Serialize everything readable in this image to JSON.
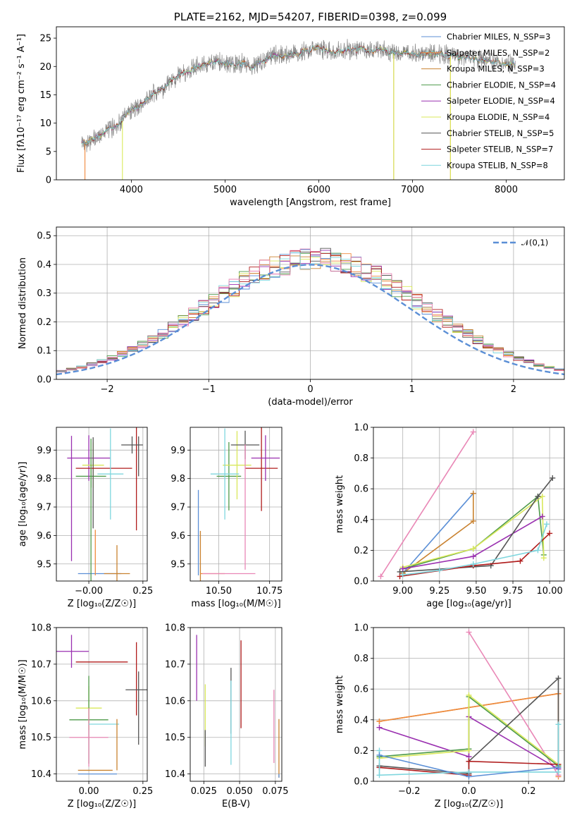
{
  "chart_data": [
    {
      "id": "spectrum",
      "type": "line",
      "title": "PLATE=2162, MJD=54207, FIBERID=0398, z=0.099",
      "xlabel": "wavelength [Angstrom, rest frame]",
      "ylabel": "Flux [fλ10⁻¹⁷ erg cm⁻² s⁻¹ A⁻¹]",
      "xlim": [
        3200,
        8620
      ],
      "ylim": [
        0,
        27
      ],
      "xticks": [
        "4000",
        "5000",
        "6000",
        "7000",
        "8000"
      ],
      "yticks": [
        "0",
        "5",
        "10",
        "15",
        "20",
        "25"
      ],
      "grid": false,
      "legend_position": "right",
      "series": [
        {
          "name": "Chabrier MILES, N_SSP=3",
          "color": "#5b8fd6"
        },
        {
          "name": "Salpeter MILES, N_SSP=2",
          "color": "#f08a3c"
        },
        {
          "name": "Kroupa MILES, N_SSP=3",
          "color": "#c98230"
        },
        {
          "name": "Chabrier ELODIE, N_SSP=4",
          "color": "#4e9a4a"
        },
        {
          "name": "Salpeter ELODIE, N_SSP=4",
          "color": "#9a30b0"
        },
        {
          "name": "Kroupa ELODIE, N_SSP=4",
          "color": "#d9e85a"
        },
        {
          "name": "Chabrier STELIB, N_SSP=5",
          "color": "#555555"
        },
        {
          "name": "Salpeter STELIB, N_SSP=7",
          "color": "#b01c1c"
        },
        {
          "name": "Kroupa STELIB, N_SSP=8",
          "color": "#7fd6de"
        }
      ],
      "data_points": [
        [
          3470,
          6.5
        ],
        [
          3600,
          7.0
        ],
        [
          3700,
          8.5
        ],
        [
          3800,
          9.2
        ],
        [
          3900,
          10.5
        ],
        [
          4000,
          12.5
        ],
        [
          4100,
          13.0
        ],
        [
          4200,
          14.8
        ],
        [
          4300,
          15.5
        ],
        [
          4400,
          16.8
        ],
        [
          4500,
          18.5
        ],
        [
          4600,
          19.2
        ],
        [
          4700,
          20.0
        ],
        [
          4800,
          20.3
        ],
        [
          4900,
          20.8
        ],
        [
          5000,
          20.5
        ],
        [
          5100,
          20.2
        ],
        [
          5200,
          20.8
        ],
        [
          5300,
          19.8
        ],
        [
          5400,
          21.2
        ],
        [
          5500,
          21.8
        ],
        [
          5600,
          22.0
        ],
        [
          5700,
          22.2
        ],
        [
          5800,
          22.3
        ],
        [
          5900,
          23.0
        ],
        [
          6000,
          23.2
        ],
        [
          6100,
          22.8
        ],
        [
          6200,
          22.6
        ],
        [
          6300,
          23.0
        ],
        [
          6400,
          22.9
        ],
        [
          6500,
          23.2
        ],
        [
          6600,
          22.7
        ],
        [
          6700,
          22.8
        ],
        [
          6800,
          22.4
        ],
        [
          6900,
          22.6
        ],
        [
          7000,
          22.3
        ],
        [
          7100,
          22.0
        ],
        [
          7200,
          22.5
        ],
        [
          7300,
          22.2
        ],
        [
          7400,
          22.0
        ],
        [
          7500,
          21.8
        ],
        [
          7600,
          21.5
        ],
        [
          7700,
          21.3
        ],
        [
          7800,
          21.0
        ],
        [
          7900,
          20.8
        ],
        [
          8000,
          20.5
        ]
      ]
    },
    {
      "id": "residuals",
      "type": "histogram",
      "xlabel": "(data-model)/error",
      "ylabel": "Normed distribution",
      "xlim": [
        -2.5,
        2.5
      ],
      "ylim": [
        0,
        0.53
      ],
      "xticks": [
        "−2",
        "−1",
        "0",
        "1",
        "2"
      ],
      "yticks": [
        "0.0",
        "0.1",
        "0.2",
        "0.3",
        "0.4",
        "0.5"
      ],
      "grid": true,
      "legend_position": "top-right",
      "legend_label": "𝒩(0,1)",
      "curve_color": "#5b8fd6",
      "bin_width": 0.1
    },
    {
      "id": "age-vs-z",
      "type": "scatter",
      "xlabel": "Z [log₁₀(Z/Z☉)]",
      "ylabel": "age  [log₁₀(age/yr)]",
      "xlim": [
        -0.15,
        0.27
      ],
      "ylim": [
        9.44,
        9.98
      ],
      "xticks": [
        "−0.00",
        "0.25"
      ],
      "yticks": [
        "9.5",
        "9.6",
        "9.7",
        "9.8",
        "9.9"
      ],
      "grid": true,
      "points": [
        {
          "x": 0.05,
          "y": 9.466,
          "xerr": 0.1,
          "yerr": 0.0,
          "color": "#5b8fd6"
        },
        {
          "x": 0.13,
          "y": 9.466,
          "xerr": 0.06,
          "yerr": 0.1,
          "color": "#c98230"
        },
        {
          "x": 0.01,
          "y": 9.808,
          "xerr": 0.07,
          "yerr": 0.04,
          "color": "#4e9a4a"
        },
        {
          "x": 0.0,
          "y": 9.872,
          "xerr": 0.1,
          "yerr": 0.08,
          "color": "#9a30b0"
        },
        {
          "x": 0.02,
          "y": 9.847,
          "xerr": 0.05,
          "yerr": 0.08,
          "color": "#d9e85a"
        },
        {
          "x": 0.02,
          "y": 9.785,
          "xerr": 0.0,
          "yerr": 0.16,
          "color": "#555555"
        },
        {
          "x": 0.07,
          "y": 9.836,
          "xerr": 0.13,
          "yerr": 0.0,
          "color": "#b01c1c"
        },
        {
          "x": 0.22,
          "y": 9.838,
          "xerr": 0.0,
          "yerr": 0.22,
          "color": "#b01c1c"
        },
        {
          "x": 0.2,
          "y": 9.918,
          "xerr": 0.05,
          "yerr": 0.03,
          "color": "#555555"
        },
        {
          "x": 0.23,
          "y": 9.878,
          "xerr": 0.0,
          "yerr": 0.07,
          "color": "#555555"
        },
        {
          "x": 0.1,
          "y": 9.816,
          "xerr": 0.06,
          "yerr": 0.16,
          "color": "#7fd6de"
        },
        {
          "x": 0.01,
          "y": 9.68,
          "xerr": 0.0,
          "yerr": 0.26,
          "color": "#4e9a4a"
        },
        {
          "x": 0.03,
          "y": 9.54,
          "xerr": 0.0,
          "yerr": 0.08,
          "color": "#f08a3c"
        },
        {
          "x": -0.08,
          "y": 9.73,
          "xerr": 0.0,
          "yerr": 0.22,
          "color": "#9a30b0"
        }
      ]
    },
    {
      "id": "age-vs-mass",
      "type": "scatter",
      "xlabel": "mass [log₁₀(M/M☉)]",
      "ylabel": "",
      "xlim": [
        10.36,
        10.81
      ],
      "ylim": [
        9.44,
        9.98
      ],
      "xticks": [
        "10.50",
        "10.75"
      ],
      "yticks": [
        "9.5",
        "9.6",
        "9.7",
        "9.8",
        "9.9"
      ],
      "grid": true,
      "points": [
        {
          "x": 10.4,
          "y": 9.61,
          "xerr": 0.0,
          "yerr": 0.15,
          "color": "#5b8fd6"
        },
        {
          "x": 10.41,
          "y": 9.466,
          "xerr": 0.0,
          "yerr": 0.15,
          "color": "#c98230"
        },
        {
          "x": 10.47,
          "y": 9.466,
          "xerr": 0.06,
          "yerr": 0.0,
          "color": "#f08a3c"
        },
        {
          "x": 10.55,
          "y": 9.808,
          "xerr": 0.06,
          "yerr": 0.12,
          "color": "#4e9a4a"
        },
        {
          "x": 10.59,
          "y": 9.847,
          "xerr": 0.07,
          "yerr": 0.12,
          "color": "#d9e85a"
        },
        {
          "x": 10.63,
          "y": 9.918,
          "xerr": 0.07,
          "yerr": 0.05,
          "color": "#555555"
        },
        {
          "x": 10.71,
          "y": 9.836,
          "xerr": 0.08,
          "yerr": 0.15,
          "color": "#b01c1c"
        },
        {
          "x": 10.73,
          "y": 9.872,
          "xerr": 0.07,
          "yerr": 0.08,
          "color": "#9a30b0"
        },
        {
          "x": 10.53,
          "y": 9.816,
          "xerr": 0.07,
          "yerr": 0.16,
          "color": "#7fd6de"
        },
        {
          "x": 10.63,
          "y": 9.7,
          "xerr": 0.0,
          "yerr": 0.22,
          "color": "#e987b6"
        },
        {
          "x": 10.55,
          "y": 9.466,
          "xerr": 0.13,
          "yerr": 0.0,
          "color": "#e987b6"
        }
      ]
    },
    {
      "id": "mass-weight-vs-age",
      "type": "line",
      "xlabel": "age  [log₁₀(age/yr)]",
      "ylabel": "mass weight",
      "xlim": [
        8.8,
        10.1
      ],
      "ylim": [
        0,
        1
      ],
      "xticks": [
        "9.00",
        "9.25",
        "9.50",
        "9.75",
        "10.00"
      ],
      "yticks": [
        "0.0",
        "0.2",
        "0.4",
        "0.6",
        "0.8",
        "1.0"
      ],
      "grid": true,
      "series": [
        {
          "color": "#e987b6",
          "points": [
            [
              8.85,
              0.03
            ],
            [
              9.48,
              0.97
            ]
          ]
        },
        {
          "color": "#5b8fd6",
          "points": [
            [
              9.0,
              0.05
            ],
            [
              9.48,
              0.57
            ]
          ]
        },
        {
          "color": "#c98230",
          "points": [
            [
              9.0,
              0.05
            ],
            [
              9.48,
              0.39
            ],
            [
              9.48,
              0.57
            ]
          ]
        },
        {
          "color": "#4e9a4a",
          "points": [
            [
              9.0,
              0.08
            ],
            [
              9.48,
              0.21
            ],
            [
              9.92,
              0.55
            ],
            [
              9.96,
              0.17
            ]
          ]
        },
        {
          "color": "#d9e85a",
          "points": [
            [
              9.0,
              0.09
            ],
            [
              9.48,
              0.21
            ],
            [
              9.95,
              0.55
            ],
            [
              9.96,
              0.15
            ]
          ]
        },
        {
          "color": "#9a30b0",
          "points": [
            [
              9.0,
              0.08
            ],
            [
              9.48,
              0.16
            ],
            [
              9.95,
              0.42
            ]
          ]
        },
        {
          "color": "#555555",
          "points": [
            [
              8.98,
              0.06
            ],
            [
              9.6,
              0.1
            ],
            [
              9.92,
              0.55
            ],
            [
              10.02,
              0.67
            ]
          ]
        },
        {
          "color": "#b01c1c",
          "points": [
            [
              8.98,
              0.03
            ],
            [
              9.48,
              0.1
            ],
            [
              9.8,
              0.13
            ],
            [
              10.0,
              0.31
            ]
          ]
        },
        {
          "color": "#7fd6de",
          "points": [
            [
              9.0,
              0.04
            ],
            [
              9.25,
              0.07
            ],
            [
              9.48,
              0.11
            ],
            [
              9.92,
              0.2
            ],
            [
              9.98,
              0.37
            ]
          ]
        }
      ]
    },
    {
      "id": "mass-vs-z",
      "type": "scatter",
      "xlabel": "Z [log₁₀(Z/Z☉)]",
      "ylabel": "mass [log₁₀(M/M☉)]",
      "xlim": [
        -0.15,
        0.27
      ],
      "ylim": [
        10.38,
        10.8
      ],
      "xticks": [
        "0.00",
        "0.25"
      ],
      "yticks": [
        "10.4",
        "10.5",
        "10.6",
        "10.7",
        "10.8"
      ],
      "grid": true,
      "points": [
        {
          "x": -0.08,
          "y": 10.735,
          "xerr": 0.08,
          "yerr": 0.045,
          "color": "#9a30b0"
        },
        {
          "x": 0.0,
          "y": 10.58,
          "xerr": 0.06,
          "yerr": 0.06,
          "color": "#d9e85a"
        },
        {
          "x": 0.0,
          "y": 10.548,
          "xerr": 0.09,
          "yerr": 0.12,
          "color": "#4e9a4a"
        },
        {
          "x": 0.0,
          "y": 10.5,
          "xerr": 0.09,
          "yerr": 0.08,
          "color": "#e987b6"
        },
        {
          "x": 0.06,
          "y": 10.706,
          "xerr": 0.12,
          "yerr": 0.0,
          "color": "#b01c1c"
        },
        {
          "x": 0.22,
          "y": 10.66,
          "xerr": 0.0,
          "yerr": 0.1,
          "color": "#b01c1c"
        },
        {
          "x": 0.22,
          "y": 10.63,
          "xerr": 0.05,
          "yerr": 0.0,
          "color": "#555555"
        },
        {
          "x": 0.23,
          "y": 10.58,
          "xerr": 0.0,
          "yerr": 0.1,
          "color": "#555555"
        },
        {
          "x": 0.07,
          "y": 10.536,
          "xerr": 0.07,
          "yerr": 0.0,
          "color": "#7fd6de"
        },
        {
          "x": 0.03,
          "y": 10.41,
          "xerr": 0.08,
          "yerr": 0.0,
          "color": "#c98230"
        },
        {
          "x": 0.04,
          "y": 10.4,
          "xerr": 0.09,
          "yerr": 0.0,
          "color": "#5b8fd6"
        },
        {
          "x": 0.13,
          "y": 10.48,
          "xerr": 0.0,
          "yerr": 0.07,
          "color": "#c98230"
        }
      ]
    },
    {
      "id": "mass-vs-ebv",
      "type": "scatter",
      "xlabel": "E(B-V)",
      "ylabel": "",
      "xlim": [
        0.0155,
        0.0795
      ],
      "ylim": [
        10.38,
        10.8
      ],
      "xticks": [
        "0.025",
        "0.050",
        "0.075"
      ],
      "yticks": [
        "10.4",
        "10.5",
        "10.6",
        "10.7",
        "10.8"
      ],
      "grid": true,
      "points": [
        {
          "x": 0.02,
          "y": 10.69,
          "xerr": 0.0,
          "yerr": 0.09,
          "color": "#9a30b0"
        },
        {
          "x": 0.026,
          "y": 10.56,
          "xerr": 0.0,
          "yerr": 0.085,
          "color": "#d9e85a"
        },
        {
          "x": 0.026,
          "y": 10.47,
          "xerr": 0.0,
          "yerr": 0.05,
          "color": "#555555"
        },
        {
          "x": 0.044,
          "y": 10.6,
          "xerr": 0.0,
          "yerr": 0.09,
          "color": "#555555"
        },
        {
          "x": 0.044,
          "y": 10.54,
          "xerr": 0.0,
          "yerr": 0.115,
          "color": "#7fd6de"
        },
        {
          "x": 0.051,
          "y": 10.645,
          "xerr": 0.0,
          "yerr": 0.12,
          "color": "#b01c1c"
        },
        {
          "x": 0.074,
          "y": 10.53,
          "xerr": 0.0,
          "yerr": 0.1,
          "color": "#e987b6"
        },
        {
          "x": 0.0775,
          "y": 10.47,
          "xerr": 0.0,
          "yerr": 0.08,
          "color": "#c98230"
        },
        {
          "x": 0.0775,
          "y": 10.395,
          "xerr": 0.0,
          "yerr": 0.005,
          "color": "#5b8fd6"
        }
      ]
    },
    {
      "id": "mass-weight-vs-z",
      "type": "line",
      "xlabel": "Z [log₁₀(Z/Z☉)]",
      "ylabel": "mass weight",
      "xlim": [
        -0.32,
        0.32
      ],
      "ylim": [
        0,
        1
      ],
      "xticks": [
        "−0.2",
        "0.0",
        "0.2"
      ],
      "yticks": [
        "0.0",
        "0.2",
        "0.4",
        "0.6",
        "0.8",
        "1.0"
      ],
      "grid": true,
      "series": [
        {
          "color": "#c98230",
          "points": [
            [
              -0.3,
              0.39
            ],
            [
              0.3,
              0.57
            ]
          ]
        },
        {
          "color": "#f08a3c",
          "points": [
            [
              -0.3,
              0.39
            ],
            [
              0.3,
              0.57
            ],
            [
              0.3,
              0.03
            ]
          ]
        },
        {
          "color": "#e987b6",
          "points": [
            [
              0.0,
              0.97
            ],
            [
              0.3,
              0.04
            ]
          ]
        },
        {
          "color": "#9a30b0",
          "points": [
            [
              -0.3,
              0.35
            ],
            [
              0.0,
              0.16
            ],
            [
              0.0,
              0.42
            ],
            [
              0.3,
              0.08
            ]
          ]
        },
        {
          "color": "#4e9a4a",
          "points": [
            [
              -0.3,
              0.16
            ],
            [
              0.0,
              0.21
            ],
            [
              0.0,
              0.55
            ],
            [
              0.3,
              0.1
            ]
          ]
        },
        {
          "color": "#d9e85a",
          "points": [
            [
              -0.3,
              0.15
            ],
            [
              0.0,
              0.2
            ],
            [
              0.0,
              0.56
            ],
            [
              0.3,
              0.11
            ]
          ]
        },
        {
          "color": "#555555",
          "points": [
            [
              -0.3,
              0.1
            ],
            [
              0.0,
              0.05
            ],
            [
              0.0,
              0.13
            ],
            [
              0.3,
              0.67
            ],
            [
              0.3,
              0.09
            ]
          ]
        },
        {
          "color": "#b01c1c",
          "points": [
            [
              -0.3,
              0.09
            ],
            [
              0.0,
              0.04
            ],
            [
              0.0,
              0.13
            ],
            [
              0.3,
              0.11
            ]
          ]
        },
        {
          "color": "#7fd6de",
          "points": [
            [
              -0.3,
              0.2
            ],
            [
              -0.3,
              0.04
            ],
            [
              0.0,
              0.06
            ],
            [
              0.3,
              0.06
            ],
            [
              0.3,
              0.37
            ]
          ]
        },
        {
          "color": "#5b8fd6",
          "points": [
            [
              -0.3,
              0.17
            ],
            [
              0.0,
              0.03
            ],
            [
              0.3,
              0.09
            ]
          ]
        }
      ]
    }
  ]
}
